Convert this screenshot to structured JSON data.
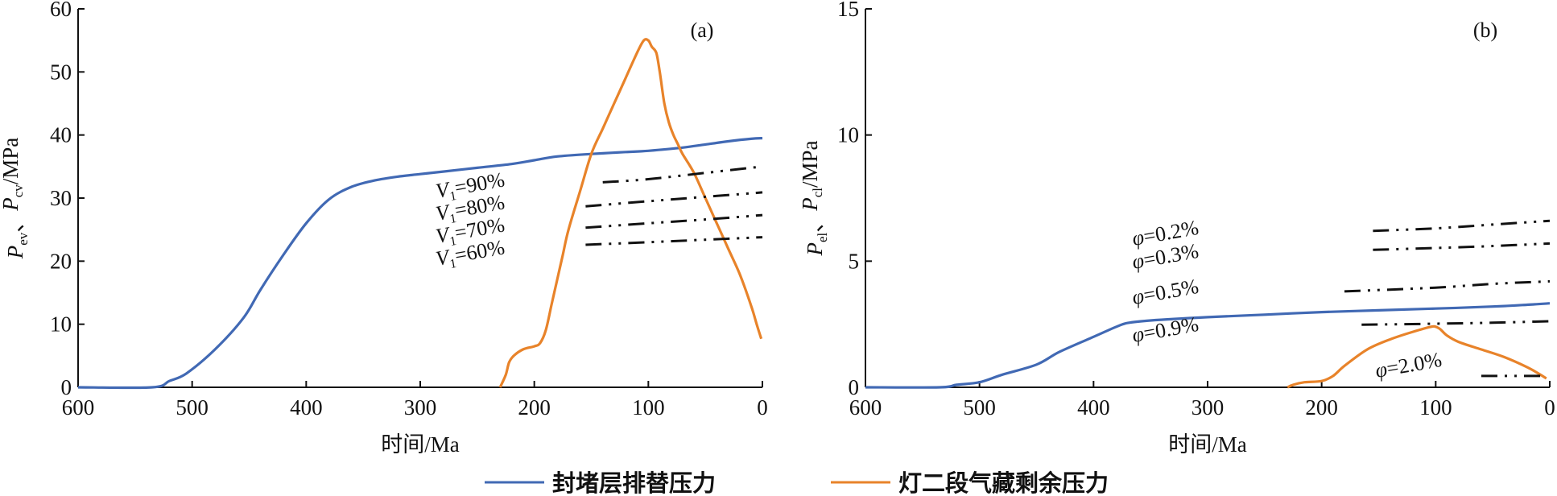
{
  "chart_data": [
    {
      "type": "line",
      "panel_label": "(a)",
      "xlabel": "时间/Ma",
      "ylabel": [
        "P",
        "ev",
        "、",
        "P",
        "cv",
        "/MPa"
      ],
      "xlim": [
        600,
        0
      ],
      "ylim": [
        0,
        60
      ],
      "xticks": [
        "600",
        "500",
        "400",
        "300",
        "200",
        "100",
        "0"
      ],
      "yticks": [
        "0",
        "10",
        "20",
        "30",
        "40",
        "50",
        "60"
      ],
      "series": [
        {
          "name": "封堵层排替压力",
          "color": "#4169B4",
          "style": "solid",
          "x": [
            600,
            535,
            520,
            505,
            480,
            455,
            440,
            420,
            400,
            380,
            360,
            340,
            320,
            300,
            280,
            250,
            220,
            200,
            180,
            150,
            120,
            100,
            70,
            50,
            30,
            10,
            0
          ],
          "y": [
            0,
            0,
            1,
            2.2,
            6,
            11,
            15.5,
            21,
            26,
            29.8,
            31.8,
            32.8,
            33.4,
            33.8,
            34.2,
            34.8,
            35.4,
            36,
            36.6,
            37,
            37.3,
            37.5,
            38,
            38.5,
            39,
            39.4,
            39.5
          ]
        },
        {
          "name": "灯二段气藏剩余压力",
          "color": "#E8832A",
          "style": "solid",
          "x": [
            230,
            225,
            222,
            218,
            210,
            200,
            195,
            190,
            185,
            180,
            175,
            170,
            160,
            150,
            140,
            130,
            120,
            110,
            104,
            100,
            97,
            93,
            90,
            86,
            82,
            78,
            74,
            70,
            60,
            50,
            40,
            30,
            20,
            10,
            5,
            1
          ],
          "y": [
            0,
            2,
            4,
            5,
            6,
            6.5,
            7,
            9,
            13,
            17,
            21,
            25,
            31,
            37,
            41,
            45,
            49,
            53,
            55,
            55,
            54,
            53,
            50,
            45,
            42,
            40,
            38.5,
            37,
            34,
            30,
            26,
            22,
            18,
            13,
            10,
            7.7
          ]
        },
        {
          "name": "V1=90%",
          "color": "#111111",
          "style": "dashdot",
          "x": [
            140,
            100,
            50,
            0
          ],
          "y": [
            32.5,
            33,
            34,
            35
          ]
        },
        {
          "name": "V1=80%",
          "color": "#111111",
          "style": "dashdot",
          "x": [
            155,
            100,
            50,
            0
          ],
          "y": [
            28.7,
            29.5,
            30.2,
            30.9
          ]
        },
        {
          "name": "V1=70%",
          "color": "#111111",
          "style": "dashdot",
          "x": [
            155,
            100,
            50,
            0
          ],
          "y": [
            25.3,
            26,
            26.6,
            27.3
          ]
        },
        {
          "name": "V1=60%",
          "color": "#111111",
          "style": "dashdot",
          "x": [
            155,
            100,
            50,
            0
          ],
          "y": [
            22.6,
            23,
            23.4,
            23.8
          ]
        }
      ],
      "annotations": [
        {
          "main": "V",
          "sub": "1",
          "rest": "=90%"
        },
        {
          "main": "V",
          "sub": "1",
          "rest": "=80%"
        },
        {
          "main": "V",
          "sub": "1",
          "rest": "=70%"
        },
        {
          "main": "V",
          "sub": "1",
          "rest": "=60%"
        }
      ]
    },
    {
      "type": "line",
      "panel_label": "(b)",
      "xlabel": "时间/Ma",
      "ylabel": [
        "P",
        "el",
        "、",
        "P",
        "cl",
        "/MPa"
      ],
      "xlim": [
        600,
        0
      ],
      "ylim": [
        0,
        15
      ],
      "xticks": [
        "600",
        "500",
        "400",
        "300",
        "200",
        "100",
        "0"
      ],
      "yticks": [
        "0",
        "5",
        "10",
        "15"
      ],
      "series": [
        {
          "name": "封堵层排替压力",
          "color": "#4169B4",
          "style": "solid",
          "x": [
            600,
            535,
            520,
            500,
            480,
            450,
            430,
            400,
            380,
            370,
            350,
            300,
            250,
            200,
            150,
            100,
            50,
            20,
            0
          ],
          "y": [
            0,
            0,
            0.1,
            0.2,
            0.5,
            0.9,
            1.4,
            2.0,
            2.4,
            2.55,
            2.65,
            2.78,
            2.88,
            2.98,
            3.05,
            3.12,
            3.2,
            3.27,
            3.33
          ]
        },
        {
          "name": "灯二段气藏剩余压力",
          "color": "#E8832A",
          "style": "solid",
          "x": [
            230,
            225,
            215,
            200,
            190,
            180,
            160,
            140,
            120,
            104,
            100,
            96,
            90,
            80,
            60,
            40,
            20,
            10,
            3
          ],
          "y": [
            0,
            0.1,
            0.2,
            0.25,
            0.45,
            0.85,
            1.5,
            1.9,
            2.2,
            2.4,
            2.4,
            2.3,
            2.05,
            1.8,
            1.5,
            1.2,
            0.8,
            0.55,
            0.35
          ]
        },
        {
          "name": "φ=0.2%",
          "color": "#111111",
          "style": "dashdot",
          "x": [
            155,
            100,
            50,
            0
          ],
          "y": [
            6.2,
            6.3,
            6.45,
            6.6
          ]
        },
        {
          "name": "φ=0.3%",
          "color": "#111111",
          "style": "dashdot",
          "x": [
            155,
            100,
            50,
            0
          ],
          "y": [
            5.45,
            5.52,
            5.6,
            5.7
          ]
        },
        {
          "name": "φ=0.5%",
          "color": "#111111",
          "style": "dashdot",
          "x": [
            180,
            100,
            50,
            0
          ],
          "y": [
            3.8,
            3.95,
            4.1,
            4.2
          ]
        },
        {
          "name": "φ=0.9%",
          "color": "#111111",
          "style": "dashdot",
          "x": [
            165,
            100,
            50,
            0
          ],
          "y": [
            2.48,
            2.52,
            2.56,
            2.62
          ]
        },
        {
          "name": "φ=2.0%",
          "color": "#111111",
          "style": "dashdot",
          "x": [
            60,
            30,
            5
          ],
          "y": [
            0.45,
            0.45,
            0.45
          ]
        }
      ],
      "annotations": [
        {
          "main": "φ",
          "sub": "",
          "rest": "=0.2%"
        },
        {
          "main": "φ",
          "sub": "",
          "rest": "=0.3%"
        },
        {
          "main": "φ",
          "sub": "",
          "rest": "=0.5%"
        },
        {
          "main": "φ",
          "sub": "",
          "rest": "=0.9%"
        },
        {
          "main": "φ",
          "sub": "",
          "rest": "=2.0%"
        }
      ]
    }
  ],
  "legend": [
    {
      "label": "封堵层排替压力",
      "color": "#4169B4"
    },
    {
      "label": "灯二段气藏剩余压力",
      "color": "#E8832A"
    }
  ]
}
